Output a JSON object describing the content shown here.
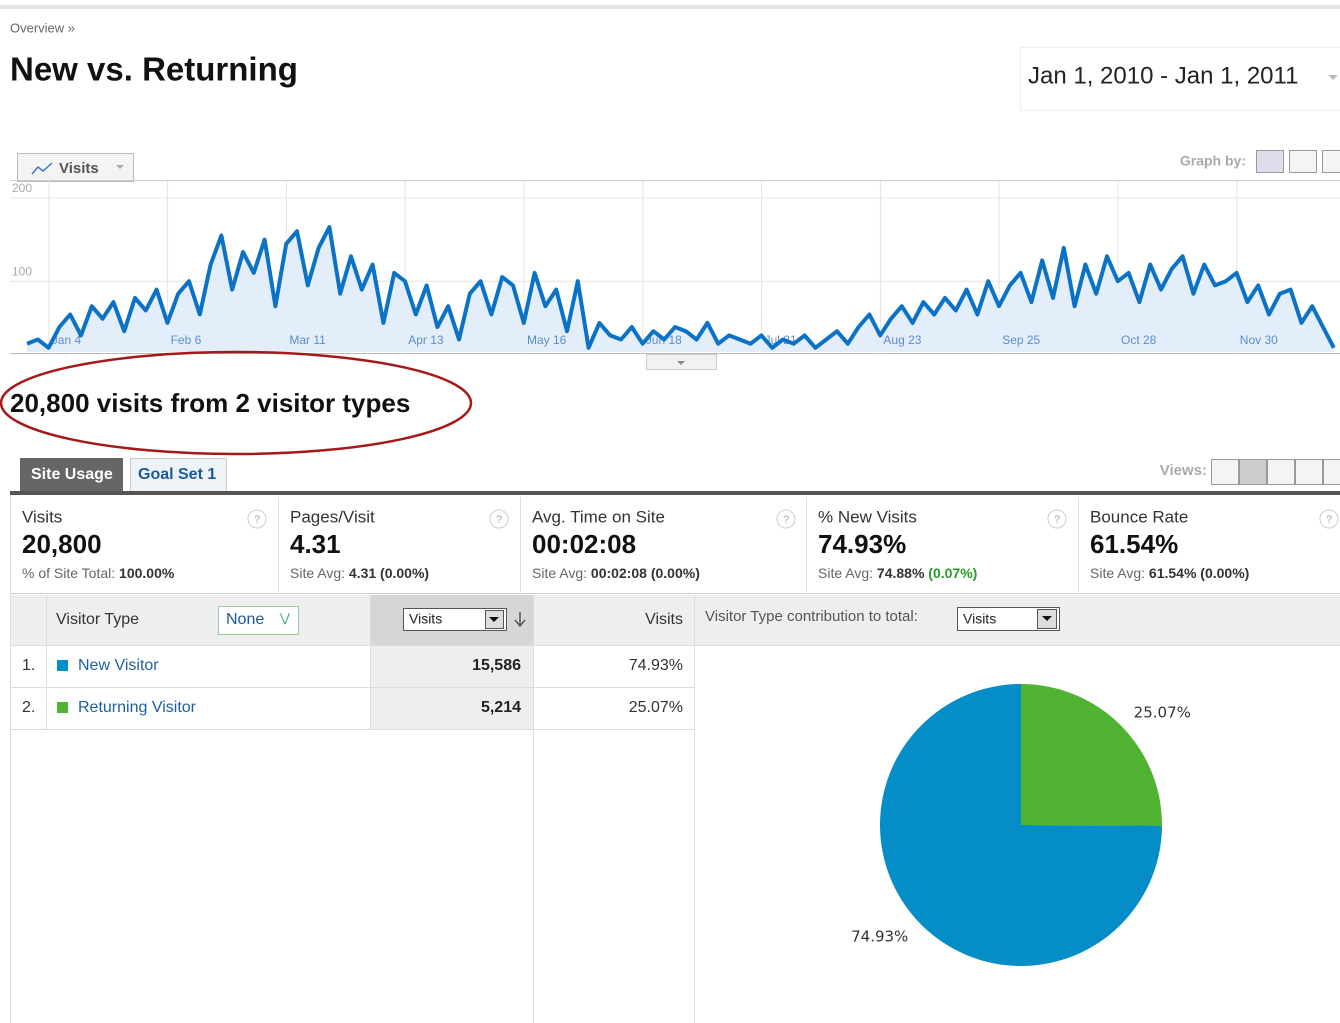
{
  "breadcrumb": "Overview »",
  "title": "New vs. Returning",
  "date_range": "Jan 1, 2010 - Jan 1, 2011",
  "graph_metric": "Visits",
  "graph_by": "Graph by:",
  "summary": "20,800 visits from 2 visitor types",
  "tabs": [
    "Site Usage",
    "Goal Set 1"
  ],
  "views": "Views:",
  "help_icon": "?",
  "metrics": [
    {
      "label": "Visits",
      "value": "20,800",
      "note": "% of Site Total:",
      "note_value": "100.00%"
    },
    {
      "label": "Pages/Visit",
      "value": "4.31",
      "note": "Site Avg:",
      "note_value": "4.31 (0.00%)"
    },
    {
      "label": "Avg. Time on Site",
      "value": "00:02:08",
      "note": "Site Avg:",
      "note_value": "00:02:08 (0.00%)"
    },
    {
      "label": "% New Visits",
      "value": "74.93%",
      "note": "Site Avg:",
      "note_value": "74.88%",
      "note_change": "(0.07%)"
    },
    {
      "label": "Bounce Rate",
      "value": "61.54%",
      "note": "Site Avg:",
      "note_value": "61.54% (0.00%)"
    }
  ],
  "table": {
    "header": [
      "Visitor Type",
      "None",
      "Visits",
      "Visits"
    ],
    "pie_header": "Visitor Type contribution to total:",
    "pie_select": "Visits",
    "rows": [
      [
        "1.",
        "New Visitor",
        "15,586",
        "74.93%"
      ],
      [
        "2.",
        "Returning Visitor",
        "5,214",
        "25.07%"
      ]
    ]
  },
  "chart_data": [
    {
      "type": "line",
      "color": "#0b72c6",
      "ylim": [
        15,
        200
      ],
      "yticks": [
        100,
        200
      ],
      "grid": true,
      "categories": [
        null,
        "Jan 4",
        null,
        null,
        null,
        null,
        null,
        null,
        null,
        null,
        null,
        null,
        "Feb 6",
        null,
        null,
        null,
        null,
        null,
        null,
        null,
        null,
        null,
        null,
        "Mar 11",
        null,
        null,
        null,
        null,
        null,
        null,
        null,
        null,
        null,
        null,
        "Apr 13",
        null,
        null,
        null,
        null,
        null,
        null,
        null,
        null,
        null,
        null,
        "May 16",
        null,
        null,
        null,
        null,
        null,
        null,
        null,
        null,
        null,
        null,
        "Jun 18",
        null,
        null,
        null,
        null,
        null,
        null,
        null,
        null,
        null,
        null,
        "Jul 21",
        null,
        null,
        null,
        null,
        null,
        null,
        null,
        null,
        null,
        null,
        "Aug 23",
        null,
        null,
        null,
        null,
        null,
        null,
        null,
        null,
        null,
        null,
        "Sep 25",
        null,
        null,
        null,
        null,
        null,
        null,
        null,
        null,
        null,
        null,
        "Oct 28",
        null,
        null,
        null,
        null,
        null,
        null,
        null,
        null,
        null,
        null,
        "Nov 30",
        null,
        null,
        null,
        null,
        null,
        null,
        null,
        null,
        null,
        null
      ],
      "values": [
        25,
        30,
        20,
        45,
        60,
        35,
        70,
        55,
        75,
        40,
        80,
        65,
        90,
        50,
        85,
        100,
        60,
        120,
        155,
        90,
        135,
        110,
        150,
        70,
        145,
        160,
        95,
        140,
        165,
        85,
        130,
        90,
        120,
        50,
        110,
        100,
        60,
        95,
        45,
        70,
        30,
        85,
        100,
        60,
        105,
        95,
        50,
        110,
        70,
        90,
        40,
        100,
        20,
        50,
        35,
        30,
        45,
        25,
        40,
        30,
        45,
        40,
        30,
        50,
        25,
        35,
        30,
        25,
        35,
        20,
        30,
        25,
        35,
        20,
        30,
        40,
        25,
        45,
        60,
        35,
        55,
        70,
        50,
        75,
        60,
        80,
        65,
        90,
        60,
        100,
        70,
        95,
        110,
        75,
        125,
        80,
        140,
        70,
        120,
        85,
        130,
        100,
        110,
        75,
        120,
        90,
        115,
        130,
        85,
        120,
        95,
        100,
        110,
        75,
        95,
        60,
        85,
        90,
        50,
        70,
        45,
        20
      ]
    },
    {
      "type": "pie",
      "categories": [
        "New Visitor",
        "Returning Visitor"
      ],
      "values": [
        74.93,
        25.07
      ],
      "value_labels": [
        "74.93%",
        "25.07%"
      ],
      "colors": [
        "#058dc7",
        "#50b432"
      ]
    }
  ]
}
